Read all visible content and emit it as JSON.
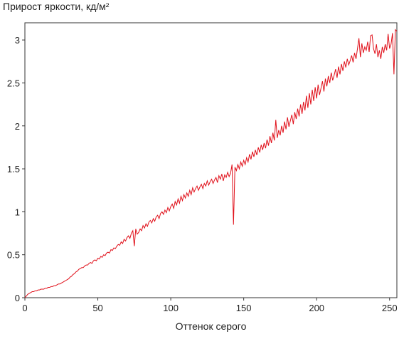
{
  "chart_data": {
    "type": "line",
    "title": "Прирост яркости, кд/м²",
    "xlabel": "Оттенок серого",
    "xlim": [
      0,
      255
    ],
    "ylim": [
      0,
      3.2
    ],
    "xticks": [
      0,
      50,
      100,
      150,
      200,
      250
    ],
    "yticks": [
      0,
      0.5,
      1,
      1.5,
      2,
      2.5,
      3
    ],
    "x": [
      0,
      1,
      2,
      3,
      4,
      5,
      6,
      7,
      8,
      9,
      10,
      11,
      12,
      13,
      14,
      15,
      16,
      17,
      18,
      19,
      20,
      21,
      22,
      23,
      24,
      25,
      26,
      27,
      28,
      29,
      30,
      31,
      32,
      33,
      34,
      35,
      36,
      37,
      38,
      39,
      40,
      41,
      42,
      43,
      44,
      45,
      46,
      47,
      48,
      49,
      50,
      51,
      52,
      53,
      54,
      55,
      56,
      57,
      58,
      59,
      60,
      61,
      62,
      63,
      64,
      65,
      66,
      67,
      68,
      69,
      70,
      71,
      72,
      73,
      74,
      75,
      76,
      77,
      78,
      79,
      80,
      81,
      82,
      83,
      84,
      85,
      86,
      87,
      88,
      89,
      90,
      91,
      92,
      93,
      94,
      95,
      96,
      97,
      98,
      99,
      100,
      101,
      102,
      103,
      104,
      105,
      106,
      107,
      108,
      109,
      110,
      111,
      112,
      113,
      114,
      115,
      116,
      117,
      118,
      119,
      120,
      121,
      122,
      123,
      124,
      125,
      126,
      127,
      128,
      129,
      130,
      131,
      132,
      133,
      134,
      135,
      136,
      137,
      138,
      139,
      140,
      141,
      142,
      143,
      144,
      145,
      146,
      147,
      148,
      149,
      150,
      151,
      152,
      153,
      154,
      155,
      156,
      157,
      158,
      159,
      160,
      161,
      162,
      163,
      164,
      165,
      166,
      167,
      168,
      169,
      170,
      171,
      172,
      173,
      174,
      175,
      176,
      177,
      178,
      179,
      180,
      181,
      182,
      183,
      184,
      185,
      186,
      187,
      188,
      189,
      190,
      191,
      192,
      193,
      194,
      195,
      196,
      197,
      198,
      199,
      200,
      201,
      202,
      203,
      204,
      205,
      206,
      207,
      208,
      209,
      210,
      211,
      212,
      213,
      214,
      215,
      216,
      217,
      218,
      219,
      220,
      221,
      222,
      223,
      224,
      225,
      226,
      227,
      228,
      229,
      230,
      231,
      232,
      233,
      234,
      235,
      236,
      237,
      238,
      239,
      240,
      241,
      242,
      243,
      244,
      245,
      246,
      247,
      248,
      249,
      250,
      251,
      252,
      253,
      254,
      255
    ],
    "series": [
      {
        "color": "#e0101a",
        "values": [
          0,
          0.02,
          0.04,
          0.05,
          0.06,
          0.07,
          0.07,
          0.08,
          0.08,
          0.09,
          0.09,
          0.1,
          0.1,
          0.1,
          0.11,
          0.11,
          0.12,
          0.12,
          0.13,
          0.13,
          0.14,
          0.14,
          0.15,
          0.16,
          0.16,
          0.17,
          0.18,
          0.19,
          0.2,
          0.21,
          0.22,
          0.24,
          0.25,
          0.27,
          0.28,
          0.3,
          0.31,
          0.33,
          0.34,
          0.35,
          0.35,
          0.37,
          0.38,
          0.38,
          0.4,
          0.41,
          0.4,
          0.43,
          0.44,
          0.43,
          0.46,
          0.45,
          0.48,
          0.47,
          0.5,
          0.49,
          0.52,
          0.53,
          0.52,
          0.56,
          0.55,
          0.58,
          0.57,
          0.6,
          0.62,
          0.61,
          0.65,
          0.63,
          0.68,
          0.66,
          0.7,
          0.72,
          0.69,
          0.75,
          0.78,
          0.6,
          0.8,
          0.74,
          0.76,
          0.8,
          0.78,
          0.84,
          0.81,
          0.86,
          0.83,
          0.88,
          0.9,
          0.87,
          0.92,
          0.89,
          0.94,
          0.96,
          0.92,
          0.98,
          1.0,
          0.97,
          1.02,
          0.99,
          1.05,
          1.01,
          1.06,
          1.09,
          1.04,
          1.12,
          1.08,
          1.15,
          1.1,
          1.18,
          1.13,
          1.2,
          1.16,
          1.22,
          1.18,
          1.25,
          1.2,
          1.28,
          1.23,
          1.27,
          1.3,
          1.25,
          1.29,
          1.32,
          1.27,
          1.33,
          1.3,
          1.36,
          1.31,
          1.35,
          1.38,
          1.33,
          1.37,
          1.4,
          1.34,
          1.42,
          1.38,
          1.44,
          1.36,
          1.43,
          1.4,
          1.46,
          1.41,
          1.45,
          1.55,
          0.85,
          1.52,
          1.48,
          1.55,
          1.5,
          1.58,
          1.53,
          1.6,
          1.55,
          1.63,
          1.58,
          1.67,
          1.61,
          1.7,
          1.64,
          1.72,
          1.66,
          1.75,
          1.69,
          1.78,
          1.72,
          1.8,
          1.74,
          1.84,
          1.77,
          1.88,
          1.8,
          1.92,
          1.83,
          2.07,
          1.86,
          1.95,
          1.89,
          2.0,
          1.92,
          2.05,
          1.96,
          2.1,
          1.99,
          2.06,
          2.13,
          2.02,
          2.16,
          2.08,
          2.2,
          2.11,
          2.25,
          2.14,
          2.28,
          2.18,
          2.35,
          2.21,
          2.38,
          2.25,
          2.42,
          2.29,
          2.45,
          2.32,
          2.48,
          2.36,
          2.44,
          2.52,
          2.4,
          2.55,
          2.46,
          2.58,
          2.5,
          2.62,
          2.53,
          2.59,
          2.66,
          2.56,
          2.69,
          2.6,
          2.72,
          2.64,
          2.75,
          2.68,
          2.78,
          2.71,
          2.76,
          2.82,
          2.74,
          2.85,
          2.78,
          2.9,
          3.02,
          2.8,
          2.96,
          2.85,
          2.92,
          2.88,
          2.98,
          2.86,
          3.05,
          3.06,
          2.9,
          2.84,
          2.95,
          2.8,
          2.88,
          2.78,
          2.92,
          2.85,
          2.95,
          2.88,
          3.07,
          2.9,
          2.95,
          3.08,
          2.6,
          3.12,
          3.1
        ]
      }
    ]
  }
}
